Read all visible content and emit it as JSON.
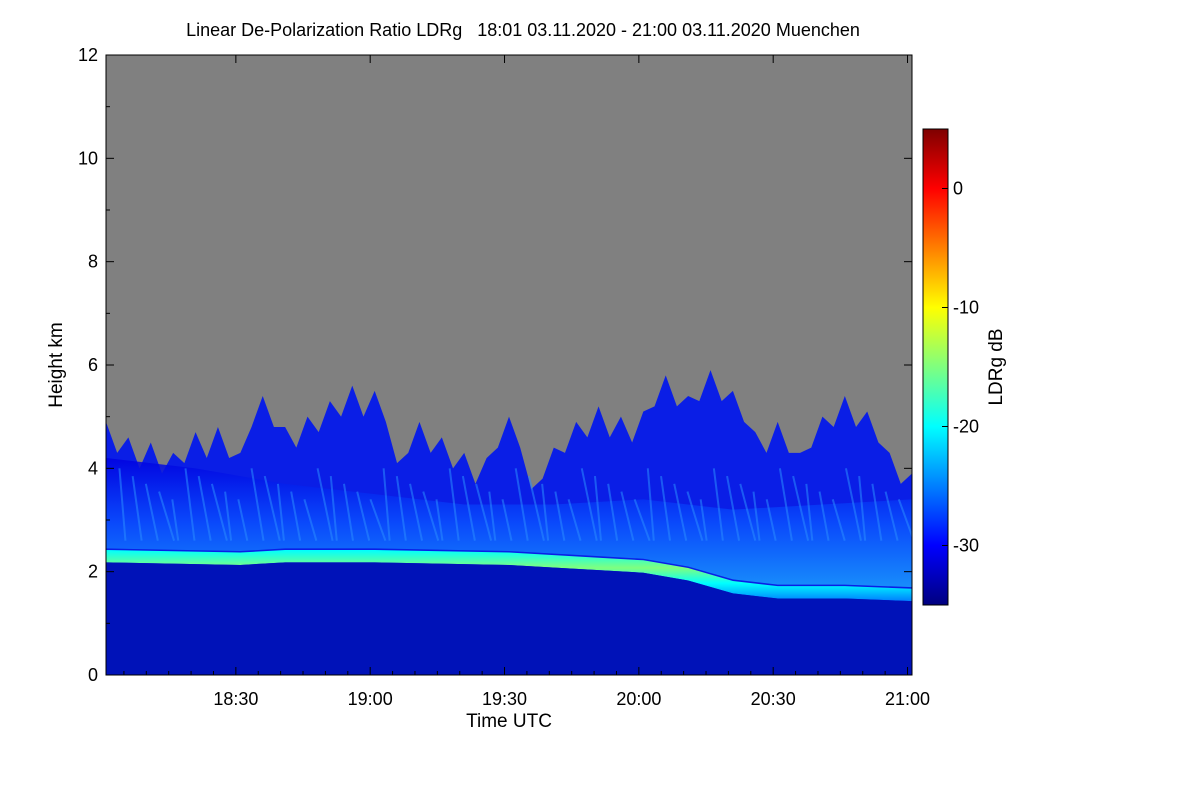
{
  "chart_data": {
    "type": "heatmap",
    "title": "Linear De-Polarization Ratio LDRg   18:01 03.11.2020 - 21:00 03.11.2020 Muenchen",
    "xlabel": "Time UTC",
    "ylabel": "Height km",
    "x_range_minutes_utc": [
      1081,
      1261
    ],
    "x_ticks": [
      {
        "minute": 1110,
        "label": "18:30"
      },
      {
        "minute": 1140,
        "label": "19:00"
      },
      {
        "minute": 1170,
        "label": "19:30"
      },
      {
        "minute": 1200,
        "label": "20:00"
      },
      {
        "minute": 1230,
        "label": "20:30"
      },
      {
        "minute": 1260,
        "label": "21:00"
      }
    ],
    "y_range_km": [
      0,
      12
    ],
    "y_ticks": [
      0,
      2,
      4,
      6,
      8,
      10,
      12
    ],
    "colorbar": {
      "label": "LDRg dB",
      "range_db": [
        -35,
        5
      ],
      "ticks": [
        0,
        -10,
        -20,
        -30
      ],
      "colormap": [
        "#00007f",
        "#0000ff",
        "#007fff",
        "#00ffff",
        "#7fff7f",
        "#ffff00",
        "#ff7f00",
        "#ff0000",
        "#7f0000"
      ]
    },
    "no_data_color": "#808080",
    "features": {
      "signal_top_km": [
        {
          "minute": 1081,
          "km": 4.9
        },
        {
          "minute": 1086,
          "km": 4.6
        },
        {
          "minute": 1091,
          "km": 4.5
        },
        {
          "minute": 1096,
          "km": 4.3
        },
        {
          "minute": 1101,
          "km": 4.7
        },
        {
          "minute": 1106,
          "km": 4.8
        },
        {
          "minute": 1111,
          "km": 4.3
        },
        {
          "minute": 1116,
          "km": 5.4
        },
        {
          "minute": 1121,
          "km": 4.8
        },
        {
          "minute": 1126,
          "km": 5.0
        },
        {
          "minute": 1131,
          "km": 5.3
        },
        {
          "minute": 1136,
          "km": 5.6
        },
        {
          "minute": 1141,
          "km": 5.5
        },
        {
          "minute": 1146,
          "km": 4.1
        },
        {
          "minute": 1151,
          "km": 4.9
        },
        {
          "minute": 1156,
          "km": 4.6
        },
        {
          "minute": 1161,
          "km": 4.3
        },
        {
          "minute": 1166,
          "km": 4.2
        },
        {
          "minute": 1171,
          "km": 5.0
        },
        {
          "minute": 1176,
          "km": 3.6
        },
        {
          "minute": 1181,
          "km": 4.4
        },
        {
          "minute": 1186,
          "km": 4.9
        },
        {
          "minute": 1191,
          "km": 5.2
        },
        {
          "minute": 1196,
          "km": 5.0
        },
        {
          "minute": 1201,
          "km": 5.1
        },
        {
          "minute": 1206,
          "km": 5.8
        },
        {
          "minute": 1211,
          "km": 5.4
        },
        {
          "minute": 1216,
          "km": 5.9
        },
        {
          "minute": 1221,
          "km": 5.5
        },
        {
          "minute": 1226,
          "km": 4.7
        },
        {
          "minute": 1231,
          "km": 4.9
        },
        {
          "minute": 1236,
          "km": 4.3
        },
        {
          "minute": 1241,
          "km": 5.0
        },
        {
          "minute": 1246,
          "km": 5.4
        },
        {
          "minute": 1251,
          "km": 5.1
        },
        {
          "minute": 1256,
          "km": 4.3
        },
        {
          "minute": 1261,
          "km": 3.9
        }
      ],
      "boundary_layer_top_km": [
        {
          "minute": 1081,
          "km": 2.3
        },
        {
          "minute": 1111,
          "km": 2.25
        },
        {
          "minute": 1121,
          "km": 2.3
        },
        {
          "minute": 1141,
          "km": 2.3
        },
        {
          "minute": 1171,
          "km": 2.25
        },
        {
          "minute": 1191,
          "km": 2.15
        },
        {
          "minute": 1201,
          "km": 2.1
        },
        {
          "minute": 1211,
          "km": 1.95
        },
        {
          "minute": 1221,
          "km": 1.7
        },
        {
          "minute": 1231,
          "km": 1.6
        },
        {
          "minute": 1246,
          "km": 1.6
        },
        {
          "minute": 1261,
          "km": 1.55
        }
      ]
    }
  }
}
